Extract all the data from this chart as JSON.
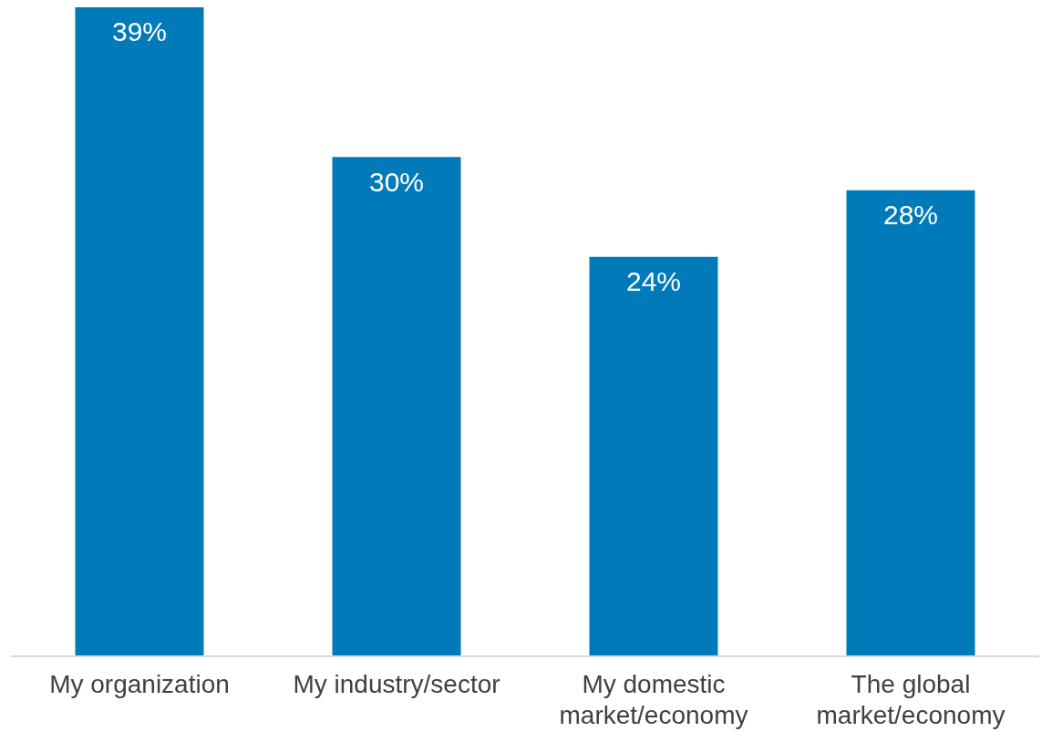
{
  "chart_data": {
    "type": "bar",
    "categories": [
      "My organization",
      "My industry/sector",
      "My domestic market/economy",
      "The global market/economy"
    ],
    "values": [
      39,
      30,
      24,
      28
    ],
    "value_labels": [
      "39%",
      "30%",
      "24%",
      "28%"
    ],
    "color": "#007ab8"
  }
}
